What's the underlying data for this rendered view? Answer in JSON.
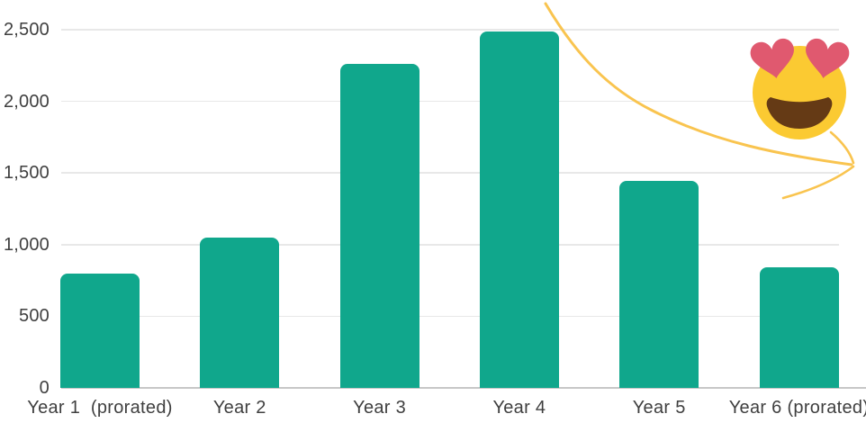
{
  "chart_data": {
    "type": "bar",
    "categories": [
      "Year 1  (prorated)",
      "Year 2",
      "Year 3",
      "Year 4",
      "Year 5",
      "Year 6 (prorated)"
    ],
    "values": [
      800,
      1050,
      2260,
      2490,
      1445,
      840
    ],
    "title": "",
    "xlabel": "",
    "ylabel": "",
    "ylim": [
      0,
      2500
    ],
    "y_ticks": [
      0,
      500,
      1000,
      1500,
      2000,
      2500
    ],
    "y_tick_labels": [
      "0",
      "500",
      "1,000",
      "1,500",
      "2,000",
      "2,500"
    ],
    "grid": true,
    "legend": false,
    "bar_color": "#10a78c",
    "gridline_color": "#e8e8e8",
    "axis_line_color": "#c7c7c7",
    "label_color": "#3f3f3f"
  },
  "decorations": {
    "emoji_name": "heart-eyes-emoji",
    "emoji_face_color": "#fbca32",
    "emoji_heart_color": "#e0596f",
    "emoji_mouth_color": "#653a15",
    "arrow_name": "hand-drawn-swoosh-arrow",
    "arrow_color": "#f9c44f"
  }
}
